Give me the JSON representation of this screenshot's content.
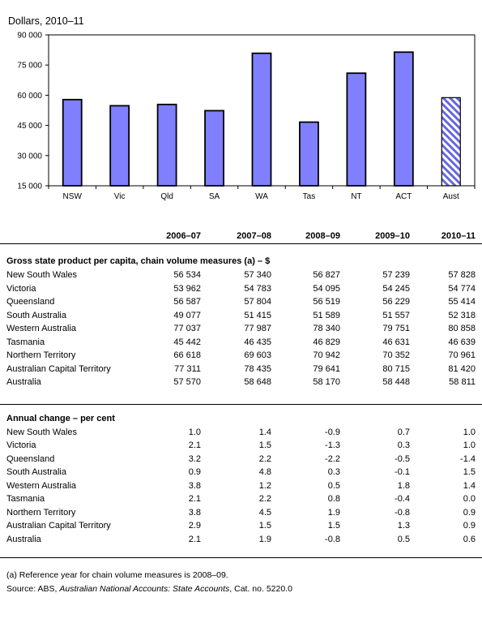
{
  "chart_data": {
    "type": "bar",
    "title": "Dollars, 2010–11",
    "categories": [
      "NSW",
      "Vic",
      "Qld",
      "SA",
      "WA",
      "Tas",
      "NT",
      "ACT",
      "Aust"
    ],
    "values": [
      57828,
      54774,
      55414,
      52318,
      80858,
      46639,
      70961,
      81420,
      58811
    ],
    "y_ticks": [
      "15 000",
      "30 000",
      "45 000",
      "60 000",
      "75 000",
      "90 000"
    ],
    "ylim": [
      15000,
      90000
    ],
    "grid": false,
    "colors": {
      "bar": "#8080ff",
      "aust_hatch": "#6666e0",
      "edge": "#000000"
    }
  },
  "table": {
    "years": [
      "2006–07",
      "2007–08",
      "2008–09",
      "2009–10",
      "2010–11"
    ],
    "sections": [
      {
        "heading": "Gross state product per capita, chain volume measures (a) – $",
        "rows": [
          {
            "label": "New South Wales",
            "values": [
              "56 534",
              "57 340",
              "56 827",
              "57 239",
              "57 828"
            ]
          },
          {
            "label": "Victoria",
            "values": [
              "53 962",
              "54 783",
              "54 095",
              "54 245",
              "54 774"
            ]
          },
          {
            "label": "Queensland",
            "values": [
              "56 587",
              "57 804",
              "56 519",
              "56 229",
              "55 414"
            ]
          },
          {
            "label": "South Australia",
            "values": [
              "49 077",
              "51 415",
              "51 589",
              "51 557",
              "52 318"
            ]
          },
          {
            "label": "Western Australia",
            "values": [
              "77 037",
              "77 987",
              "78 340",
              "79 751",
              "80 858"
            ]
          },
          {
            "label": "Tasmania",
            "values": [
              "45 442",
              "46 435",
              "46 829",
              "46 631",
              "46 639"
            ]
          },
          {
            "label": "Northern Territory",
            "values": [
              "66 618",
              "69 603",
              "70 942",
              "70 352",
              "70 961"
            ]
          },
          {
            "label": "Australian Capital Territory",
            "values": [
              "77 311",
              "78 435",
              "79 641",
              "80 715",
              "81 420"
            ]
          },
          {
            "label": "Australia",
            "values": [
              "57 570",
              "58 648",
              "58 170",
              "58 448",
              "58 811"
            ]
          }
        ]
      },
      {
        "heading": "Annual change – per cent",
        "rows": [
          {
            "label": "New South Wales",
            "values": [
              "1.0",
              "1.4",
              "-0.9",
              "0.7",
              "1.0"
            ]
          },
          {
            "label": "Victoria",
            "values": [
              "2.1",
              "1.5",
              "-1.3",
              "0.3",
              "1.0"
            ]
          },
          {
            "label": "Queensland",
            "values": [
              "3.2",
              "2.2",
              "-2.2",
              "-0.5",
              "-1.4"
            ]
          },
          {
            "label": "South Australia",
            "values": [
              "0.9",
              "4.8",
              "0.3",
              "-0.1",
              "1.5"
            ]
          },
          {
            "label": "Western Australia",
            "values": [
              "3.8",
              "1.2",
              "0.5",
              "1.8",
              "1.4"
            ]
          },
          {
            "label": "Tasmania",
            "values": [
              "2.1",
              "2.2",
              "0.8",
              "-0.4",
              "0.0"
            ]
          },
          {
            "label": "Northern Territory",
            "values": [
              "3.8",
              "4.5",
              "1.9",
              "-0.8",
              "0.9"
            ]
          },
          {
            "label": "Australian Capital Territory",
            "values": [
              "2.9",
              "1.5",
              "1.5",
              "1.3",
              "0.9"
            ]
          },
          {
            "label": "Australia",
            "values": [
              "2.1",
              "1.9",
              "-0.8",
              "0.5",
              "0.6"
            ]
          }
        ]
      }
    ]
  },
  "notes": {
    "footnote": "(a) Reference year for chain volume measures is 2008–09.",
    "source_prefix": "Source: ABS, ",
    "source_title": "Australian National Accounts: State Accounts",
    "source_suffix": ", Cat. no. 5220.0"
  }
}
